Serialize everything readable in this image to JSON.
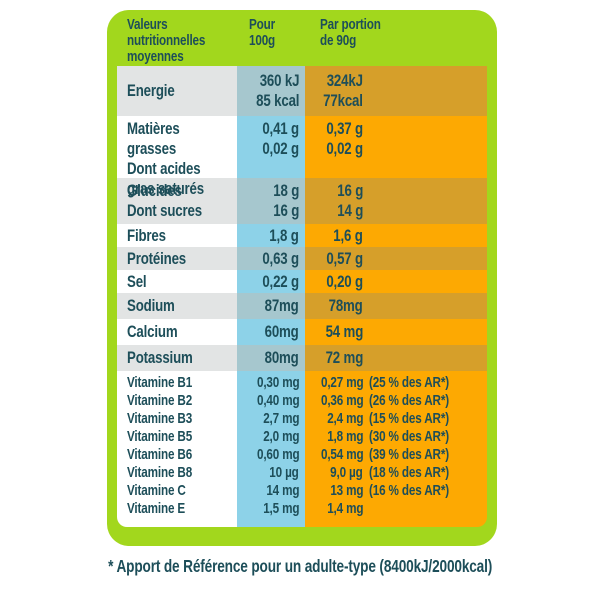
{
  "header": {
    "col_label": "Valeurs\nnutritionnelles\nmoyennes",
    "col_per100": "Pour\n100g",
    "col_portion": "Par portion\nde 90g"
  },
  "rows": [
    {
      "label": "Energie",
      "per100": "360 kJ\n85 kcal",
      "portion": "324kJ\n77kcal"
    },
    {
      "label": "Matières grasses\nDont acides\ngras saturés",
      "per100": "0,41 g\n0,02 g",
      "portion": "0,37 g\n0,02 g"
    },
    {
      "label": "Glucides\nDont sucres",
      "per100": "18 g\n16 g",
      "portion": "16 g\n14 g"
    },
    {
      "label": "Fibres",
      "per100": "1,8 g",
      "portion": "1,6 g"
    },
    {
      "label": "Protéines",
      "per100": "0,63 g",
      "portion": "0,57 g"
    },
    {
      "label": "Sel",
      "per100": "0,22 g",
      "portion": "0,20 g"
    },
    {
      "label": "Sodium",
      "per100": "87mg",
      "portion": "78mg"
    },
    {
      "label": "Calcium",
      "per100": "60mg",
      "portion": "54 mg"
    },
    {
      "label": "Potassium",
      "per100": "80mg",
      "portion": "72 mg"
    }
  ],
  "vitamins": [
    {
      "name": "Vitamine B1",
      "per100": "0,30 mg",
      "portion": "0,27 mg",
      "note": "(25 % des AR*)"
    },
    {
      "name": "Vitamine B2",
      "per100": "0,40 mg",
      "portion": "0,36 mg",
      "note": "(26 % des AR*)"
    },
    {
      "name": "Vitamine B3",
      "per100": "2,7 mg",
      "portion": "2,4 mg",
      "note": "(15 % des AR*)"
    },
    {
      "name": "Vitamine B5",
      "per100": "2,0 mg",
      "portion": "1,8 mg",
      "note": "(30 % des AR*)"
    },
    {
      "name": "Vitamine B6",
      "per100": "0,60 mg",
      "portion": "0,54 mg",
      "note": "(39 % des AR*)"
    },
    {
      "name": "Vitamine B8",
      "per100": "10 µg",
      "portion": "9,0 µg",
      "note": "(18 % des AR*)"
    },
    {
      "name": "Vitamine C",
      "per100": "14 mg",
      "portion": "13 mg",
      "note": "(16 % des AR*)"
    },
    {
      "name": "Vitamine E",
      "per100": "1,5 mg",
      "portion": "1,4 mg",
      "note": ""
    }
  ],
  "footnote": "* Apport de Référence pour un adulte-type (8400kJ/2000kcal)",
  "colors": {
    "green": "#a2d71d",
    "teal": "#1d4e59",
    "blue": "#8dd2e8",
    "blue_shaded": "#a6c7ce",
    "orange": "#fda902",
    "orange_shaded": "#d69f2a",
    "label_bg": "#ffffff",
    "label_bg_shaded": "#e2e4e4"
  }
}
